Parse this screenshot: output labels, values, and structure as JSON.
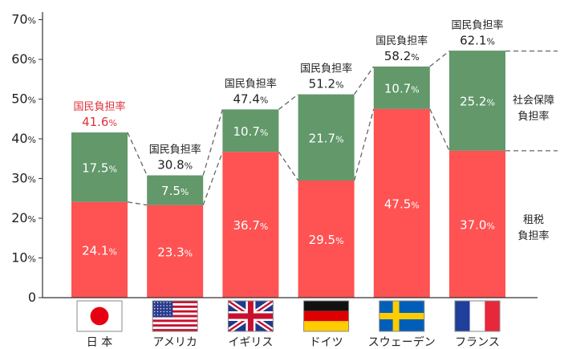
{
  "chart_data": {
    "type": "bar",
    "stacked": true,
    "y_ticks": [
      "0",
      "10%",
      "20%",
      "30%",
      "40%",
      "50%",
      "60%",
      "70%"
    ],
    "ylim": [
      0,
      70
    ],
    "grid": false,
    "legend": "none",
    "categories": [
      "日 本",
      "アメリカ",
      "イギリス",
      "ドイツ",
      "スウェーデン",
      "フランス"
    ],
    "flag_icons": [
      "japan-flag-icon",
      "usa-flag-icon",
      "uk-flag-icon",
      "germany-flag-icon",
      "sweden-flag-icon",
      "france-flag-icon"
    ],
    "series": [
      {
        "key": "tax",
        "values": [
          24.1,
          23.3,
          36.7,
          29.5,
          47.5,
          37.0
        ],
        "labels": [
          "24.1",
          "23.3",
          "36.7",
          "29.5",
          "47.5",
          "37.0"
        ],
        "color": "#ff5252"
      },
      {
        "key": "social",
        "values": [
          17.5,
          7.5,
          10.7,
          21.7,
          10.7,
          25.2
        ],
        "labels": [
          "17.5",
          "7.5",
          "10.7",
          "21.7",
          "10.7",
          "25.2"
        ],
        "color": "#62986a"
      }
    ],
    "total_caption": "国民負担率",
    "totals": [
      41.6,
      30.8,
      47.4,
      51.2,
      58.2,
      62.1
    ],
    "total_labels": [
      "41.6",
      "30.8",
      "47.4",
      "51.2",
      "58.2",
      "62.1"
    ],
    "pct_sign": "%",
    "highlight_color": "#e0303a",
    "right_labels": {
      "social": [
        "社会保障",
        "負担率"
      ],
      "tax": [
        "租税",
        "負担率"
      ]
    }
  }
}
